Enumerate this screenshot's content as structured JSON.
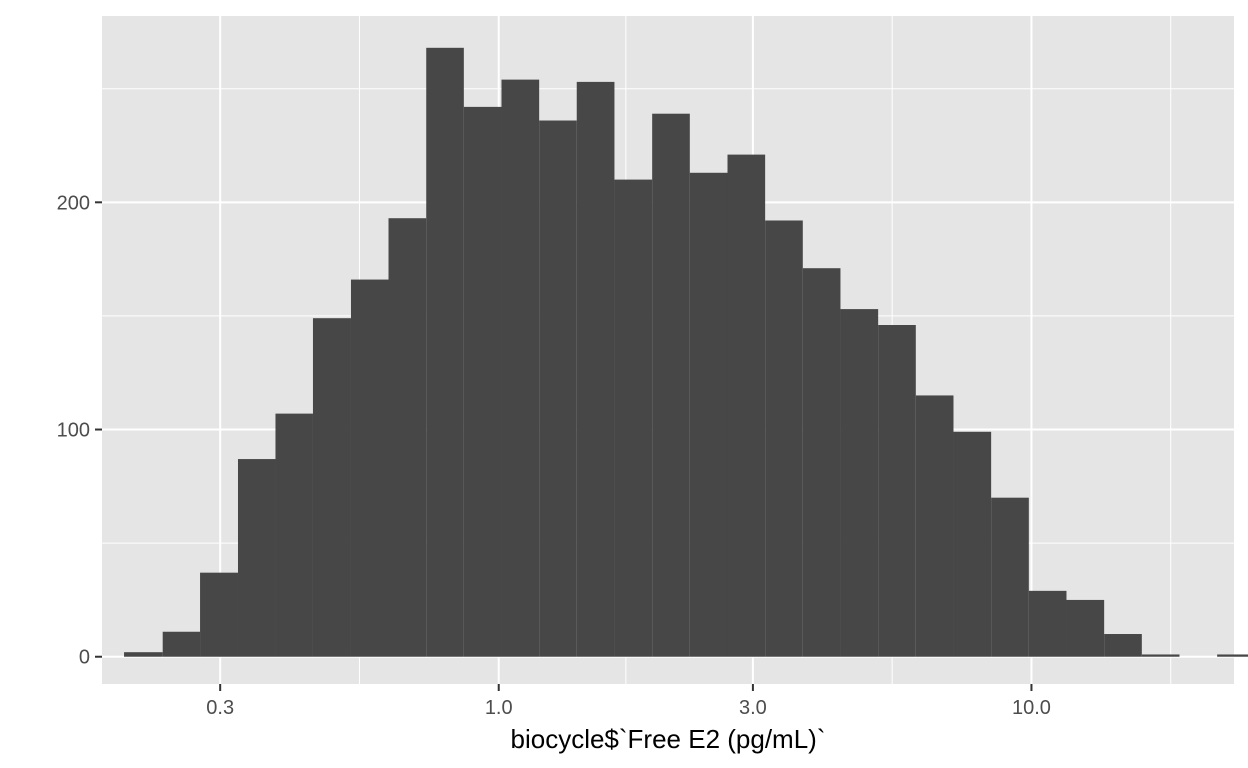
{
  "chart_data": {
    "type": "bar",
    "title": "",
    "xlabel": "biocycle$`Free E2 (pg/mL)`",
    "ylabel": "",
    "x_scale": "log10",
    "xlim": [
      0.18,
      24
    ],
    "ylim": [
      -12,
      282
    ],
    "grid": true,
    "x_ticks": [
      {
        "value": 0.3,
        "label": "0.3"
      },
      {
        "value": 1.0,
        "label": "1.0"
      },
      {
        "value": 3.0,
        "label": "3.0"
      },
      {
        "value": 10.0,
        "label": "10.0"
      }
    ],
    "y_ticks": [
      {
        "value": 0,
        "label": "0"
      },
      {
        "value": 100,
        "label": "100"
      },
      {
        "value": 200,
        "label": "200"
      }
    ],
    "bins": [
      {
        "x_min": 0.198,
        "x_max": 0.234,
        "count": 2
      },
      {
        "x_min": 0.234,
        "x_max": 0.275,
        "count": 11
      },
      {
        "x_min": 0.275,
        "x_max": 0.324,
        "count": 37
      },
      {
        "x_min": 0.324,
        "x_max": 0.381,
        "count": 87
      },
      {
        "x_min": 0.381,
        "x_max": 0.448,
        "count": 107
      },
      {
        "x_min": 0.448,
        "x_max": 0.528,
        "count": 149
      },
      {
        "x_min": 0.528,
        "x_max": 0.621,
        "count": 166
      },
      {
        "x_min": 0.621,
        "x_max": 0.731,
        "count": 193
      },
      {
        "x_min": 0.731,
        "x_max": 0.86,
        "count": 268
      },
      {
        "x_min": 0.86,
        "x_max": 1.012,
        "count": 242
      },
      {
        "x_min": 1.012,
        "x_max": 1.191,
        "count": 254
      },
      {
        "x_min": 1.191,
        "x_max": 1.401,
        "count": 236
      },
      {
        "x_min": 1.401,
        "x_max": 1.649,
        "count": 253
      },
      {
        "x_min": 1.649,
        "x_max": 1.941,
        "count": 210
      },
      {
        "x_min": 1.941,
        "x_max": 2.284,
        "count": 239
      },
      {
        "x_min": 2.284,
        "x_max": 2.688,
        "count": 213
      },
      {
        "x_min": 2.688,
        "x_max": 3.163,
        "count": 221
      },
      {
        "x_min": 3.163,
        "x_max": 3.722,
        "count": 192
      },
      {
        "x_min": 3.722,
        "x_max": 4.38,
        "count": 171
      },
      {
        "x_min": 4.38,
        "x_max": 5.155,
        "count": 153
      },
      {
        "x_min": 5.155,
        "x_max": 6.066,
        "count": 146
      },
      {
        "x_min": 6.066,
        "x_max": 7.139,
        "count": 115
      },
      {
        "x_min": 7.139,
        "x_max": 8.401,
        "count": 99
      },
      {
        "x_min": 8.401,
        "x_max": 9.887,
        "count": 70
      },
      {
        "x_min": 9.887,
        "x_max": 11.635,
        "count": 29
      },
      {
        "x_min": 11.635,
        "x_max": 13.692,
        "count": 25
      },
      {
        "x_min": 13.692,
        "x_max": 16.113,
        "count": 10
      },
      {
        "x_min": 16.113,
        "x_max": 18.962,
        "count": 1
      },
      {
        "x_min": 18.962,
        "x_max": 22.315,
        "count": 0
      },
      {
        "x_min": 22.315,
        "x_max": 26.261,
        "count": 1
      }
    ]
  },
  "colors": {
    "panel": "#e5e5e5",
    "grid": "#ffffff",
    "bar": "#474747",
    "tick_text": "#4d4d4d",
    "axis_title": "#000000",
    "tick_mark": "#333333"
  }
}
